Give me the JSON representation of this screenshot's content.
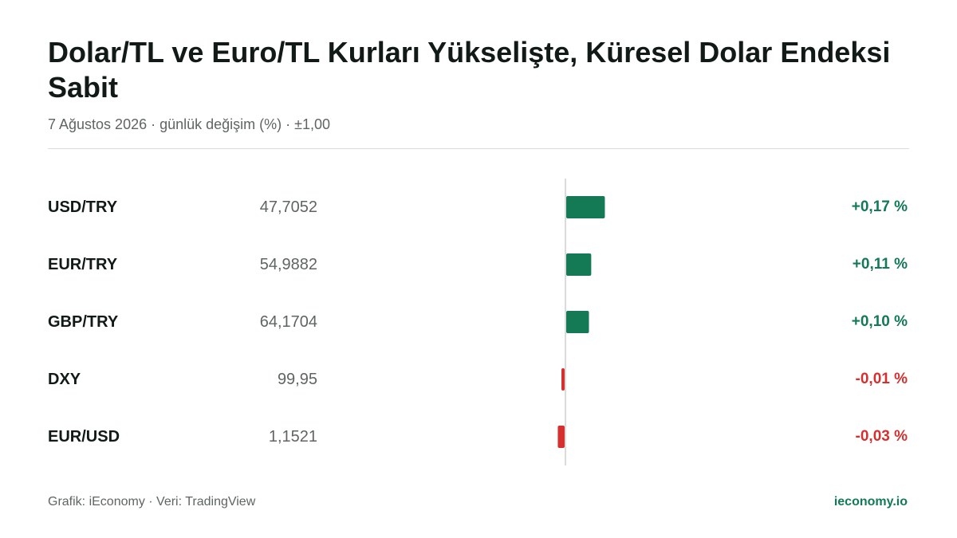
{
  "header": {
    "title": "Dolar/TL ve Euro/TL Kurları Yükselişte, Küresel Dolar Endeksi Sabit",
    "subtitle": "7 Ağustos 2026 · günlük değişim (%) · ±1,00"
  },
  "chart_data": {
    "type": "bar",
    "orientation": "horizontal",
    "categories": [
      "USD/TRY",
      "EUR/TRY",
      "GBP/TRY",
      "DXY",
      "EUR/USD"
    ],
    "prices": [
      "47,7052",
      "54,9882",
      "64,1704",
      "99,95",
      "1,1521"
    ],
    "values": [
      0.17,
      0.11,
      0.1,
      -0.01,
      -0.03
    ],
    "value_labels": [
      "+0,17 %",
      "+0,11 %",
      "+0,10 %",
      "-0,01 %",
      "-0,03 %"
    ],
    "xlim": [
      -1,
      1
    ],
    "colors": {
      "positive": "#137a55",
      "negative": "#d62f2f",
      "axis": "#d9dcdb"
    }
  },
  "footer": {
    "source": "Grafik: iEconomy · Veri: TradingView",
    "brand": "ieconomy.io"
  }
}
